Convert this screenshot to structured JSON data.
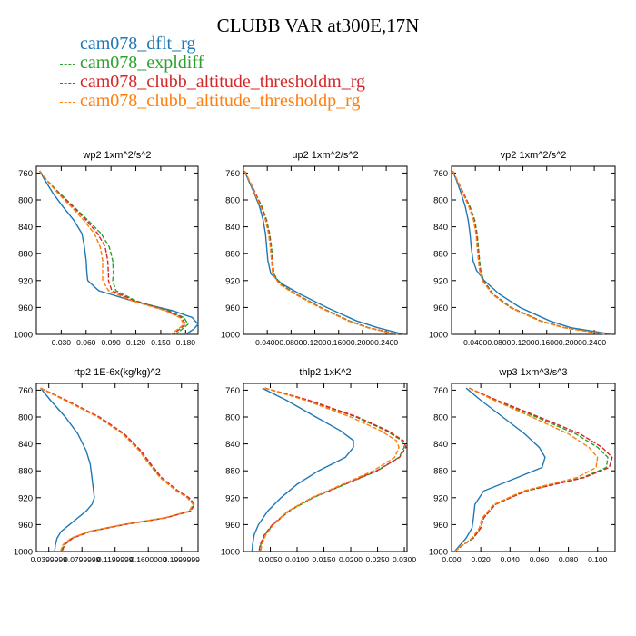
{
  "title": "CLUBB VAR at300E,17N",
  "legend": [
    {
      "label": "cam078_dflt_rg",
      "color": "#1f77b4",
      "dash": "solid"
    },
    {
      "label": "cam078_expldiff",
      "color": "#2ca02c",
      "dash": "dashed"
    },
    {
      "label": "cam078_clubb_altitude_thresholdm_rg",
      "color": "#d62728",
      "dash": "dashed"
    },
    {
      "label": "cam078_clubb_altitude_thresholdp_rg",
      "color": "#ff7f0e",
      "dash": "dashed"
    }
  ],
  "chart_data": [
    {
      "type": "line",
      "title": "wp2  1xm^2/s^2",
      "xlim": [
        0,
        0.195
      ],
      "ylim": [
        1000,
        750
      ],
      "xticks": [
        0.03,
        0.06,
        0.09,
        0.12,
        0.15,
        0.18
      ],
      "xticklabels": [
        "0.030",
        "0.060",
        "0.090",
        "0.120",
        "0.150",
        "0.180"
      ],
      "yticks": [
        760,
        800,
        840,
        880,
        920,
        960,
        1000
      ],
      "y": [
        757,
        770,
        790,
        810,
        830,
        850,
        870,
        890,
        910,
        920,
        935,
        950,
        965,
        975,
        985,
        992,
        1000
      ],
      "series": [
        {
          "name": "cam078_dflt_rg",
          "x": [
            0.004,
            0.01,
            0.02,
            0.032,
            0.045,
            0.055,
            0.058,
            0.06,
            0.061,
            0.062,
            0.075,
            0.115,
            0.165,
            0.188,
            0.195,
            0.19,
            0.18
          ]
        },
        {
          "name": "cam078_expldiff",
          "x": [
            0.004,
            0.012,
            0.028,
            0.045,
            0.062,
            0.078,
            0.088,
            0.092,
            0.093,
            0.092,
            0.096,
            0.12,
            0.16,
            0.178,
            0.183,
            0.176,
            0.168
          ]
        },
        {
          "name": "cam078_clubb_altitude_thresholdm_rg",
          "x": [
            0.004,
            0.012,
            0.027,
            0.044,
            0.06,
            0.074,
            0.083,
            0.086,
            0.087,
            0.087,
            0.091,
            0.118,
            0.158,
            0.175,
            0.18,
            0.173,
            0.165
          ]
        },
        {
          "name": "cam078_clubb_altitude_thresholdp_rg",
          "x": [
            0.004,
            0.012,
            0.026,
            0.042,
            0.057,
            0.07,
            0.077,
            0.08,
            0.08,
            0.08,
            0.087,
            0.115,
            0.156,
            0.173,
            0.178,
            0.171,
            0.162
          ]
        }
      ]
    },
    {
      "type": "line",
      "title": "up2  1xm^2/s^2",
      "xlim": [
        0.0,
        0.275
      ],
      "ylim": [
        1000,
        750
      ],
      "xticks": [
        0.04,
        0.08,
        0.12,
        0.16,
        0.2,
        0.24
      ],
      "xticklabels": [
        "0.0400",
        "0.0800",
        "0.1200",
        "0.1600",
        "0.2000",
        "0.2400"
      ],
      "yticks": [
        760,
        800,
        840,
        880,
        920,
        960,
        1000
      ],
      "y": [
        757,
        770,
        790,
        810,
        830,
        850,
        870,
        890,
        910,
        925,
        940,
        960,
        980,
        990,
        1000
      ],
      "series": [
        {
          "name": "cam078_dflt_rg",
          "x": [
            0.002,
            0.008,
            0.018,
            0.027,
            0.033,
            0.037,
            0.039,
            0.041,
            0.046,
            0.065,
            0.095,
            0.14,
            0.19,
            0.225,
            0.27
          ]
        },
        {
          "name": "cam078_expldiff",
          "x": [
            0.002,
            0.009,
            0.02,
            0.031,
            0.039,
            0.044,
            0.047,
            0.049,
            0.051,
            0.062,
            0.088,
            0.13,
            0.178,
            0.21,
            0.26
          ]
        },
        {
          "name": "cam078_clubb_altitude_thresholdm_rg",
          "x": [
            0.002,
            0.009,
            0.02,
            0.03,
            0.038,
            0.043,
            0.046,
            0.048,
            0.05,
            0.061,
            0.087,
            0.129,
            0.177,
            0.209,
            0.259
          ]
        },
        {
          "name": "cam078_clubb_altitude_thresholdp_rg",
          "x": [
            0.002,
            0.009,
            0.019,
            0.029,
            0.037,
            0.042,
            0.045,
            0.047,
            0.049,
            0.06,
            0.086,
            0.128,
            0.176,
            0.208,
            0.258
          ]
        }
      ]
    },
    {
      "type": "line",
      "title": "vp2  1xm^2/s^2",
      "xlim": [
        0.0,
        0.275
      ],
      "ylim": [
        1000,
        750
      ],
      "xticks": [
        0.04,
        0.08,
        0.12,
        0.16,
        0.2,
        0.24
      ],
      "xticklabels": [
        "0.0400",
        "0.0800",
        "0.1200",
        "0.1600",
        "0.2000",
        "0.2400"
      ],
      "yticks": [
        760,
        800,
        840,
        880,
        920,
        960,
        1000
      ],
      "y": [
        757,
        770,
        790,
        810,
        830,
        850,
        870,
        890,
        905,
        920,
        940,
        960,
        980,
        990,
        1000
      ],
      "series": [
        {
          "name": "cam078_dflt_rg",
          "x": [
            0.002,
            0.008,
            0.016,
            0.023,
            0.028,
            0.031,
            0.033,
            0.036,
            0.042,
            0.055,
            0.08,
            0.115,
            0.165,
            0.2,
            0.27
          ]
        },
        {
          "name": "cam078_expldiff",
          "x": [
            0.002,
            0.009,
            0.02,
            0.031,
            0.039,
            0.043,
            0.045,
            0.047,
            0.049,
            0.054,
            0.07,
            0.1,
            0.15,
            0.19,
            0.262
          ]
        },
        {
          "name": "cam078_clubb_altitude_thresholdm_rg",
          "x": [
            0.002,
            0.009,
            0.02,
            0.03,
            0.038,
            0.042,
            0.044,
            0.046,
            0.048,
            0.053,
            0.069,
            0.099,
            0.149,
            0.189,
            0.261
          ]
        },
        {
          "name": "cam078_clubb_altitude_thresholdp_rg",
          "x": [
            0.002,
            0.009,
            0.019,
            0.029,
            0.037,
            0.041,
            0.043,
            0.045,
            0.047,
            0.052,
            0.068,
            0.098,
            0.148,
            0.188,
            0.26
          ]
        }
      ]
    },
    {
      "type": "line",
      "title": "rtp2  1E-6x(kg/kg)^2",
      "xlim": [
        0.025,
        0.22
      ],
      "ylim": [
        1000,
        750
      ],
      "xticks": [
        0.04,
        0.08,
        0.12,
        0.16,
        0.2
      ],
      "xticklabels": [
        "0.0399999",
        "0.0799999",
        "0.1199999",
        "0.1600000",
        "0.1999999"
      ],
      "yticks": [
        760,
        800,
        840,
        880,
        920,
        960,
        1000
      ],
      "y": [
        757,
        775,
        800,
        825,
        850,
        870,
        890,
        910,
        920,
        930,
        940,
        950,
        960,
        970,
        980,
        990,
        1000
      ],
      "series": [
        {
          "name": "cam078_dflt_rg",
          "x": [
            0.03,
            0.042,
            0.06,
            0.075,
            0.085,
            0.09,
            0.092,
            0.094,
            0.095,
            0.092,
            0.085,
            0.075,
            0.065,
            0.055,
            0.05,
            0.048,
            0.047
          ]
        },
        {
          "name": "cam078_expldiff",
          "x": [
            0.03,
            0.06,
            0.1,
            0.13,
            0.15,
            0.162,
            0.175,
            0.195,
            0.208,
            0.215,
            0.21,
            0.18,
            0.13,
            0.09,
            0.068,
            0.058,
            0.055
          ]
        },
        {
          "name": "cam078_clubb_altitude_thresholdm_rg",
          "x": [
            0.03,
            0.061,
            0.101,
            0.131,
            0.151,
            0.163,
            0.176,
            0.196,
            0.209,
            0.216,
            0.211,
            0.181,
            0.131,
            0.091,
            0.069,
            0.059,
            0.056
          ]
        },
        {
          "name": "cam078_clubb_altitude_thresholdp_rg",
          "x": [
            0.03,
            0.059,
            0.099,
            0.129,
            0.149,
            0.161,
            0.174,
            0.194,
            0.207,
            0.214,
            0.209,
            0.179,
            0.129,
            0.089,
            0.067,
            0.057,
            0.054
          ]
        }
      ]
    },
    {
      "type": "line",
      "title": "thlp2  1xK^2",
      "xlim": [
        0.0,
        0.0305
      ],
      "ylim": [
        1000,
        750
      ],
      "xticks": [
        0.005,
        0.01,
        0.015,
        0.02,
        0.025,
        0.03
      ],
      "xticklabels": [
        "0.0050",
        "0.0100",
        "0.0150",
        "0.0200",
        "0.0250",
        "0.0300"
      ],
      "yticks": [
        760,
        800,
        840,
        880,
        920,
        960,
        1000
      ],
      "y": [
        757,
        775,
        800,
        820,
        835,
        845,
        860,
        880,
        900,
        920,
        940,
        960,
        975,
        990,
        1000
      ],
      "series": [
        {
          "name": "cam078_dflt_rg",
          "x": [
            0.0035,
            0.008,
            0.0135,
            0.018,
            0.0205,
            0.0205,
            0.019,
            0.014,
            0.01,
            0.007,
            0.0045,
            0.0028,
            0.002,
            0.0017,
            0.0016
          ]
        },
        {
          "name": "cam078_expldiff",
          "x": [
            0.004,
            0.012,
            0.021,
            0.0265,
            0.0295,
            0.03,
            0.029,
            0.025,
            0.019,
            0.013,
            0.0085,
            0.0055,
            0.004,
            0.0032,
            0.003
          ]
        },
        {
          "name": "cam078_clubb_altitude_thresholdm_rg",
          "x": [
            0.004,
            0.0122,
            0.0213,
            0.0268,
            0.0298,
            0.0303,
            0.0291,
            0.0248,
            0.0188,
            0.0128,
            0.0083,
            0.0054,
            0.0039,
            0.0031,
            0.0029
          ]
        },
        {
          "name": "cam078_clubb_altitude_thresholdp_rg",
          "x": [
            0.004,
            0.0115,
            0.02,
            0.0255,
            0.0285,
            0.029,
            0.0282,
            0.0242,
            0.0185,
            0.0127,
            0.0083,
            0.0056,
            0.0042,
            0.0034,
            0.0032
          ]
        }
      ]
    },
    {
      "type": "line",
      "title": "wp3  1xm^3/s^3",
      "xlim": [
        0.0,
        0.112
      ],
      "ylim": [
        1000,
        750
      ],
      "xticks": [
        0.0,
        0.02,
        0.04,
        0.06,
        0.08,
        0.1
      ],
      "xticklabels": [
        "0.000",
        "0.020",
        "0.040",
        "0.060",
        "0.080",
        "0.100"
      ],
      "yticks": [
        760,
        800,
        840,
        880,
        920,
        960,
        1000
      ],
      "y": [
        757,
        775,
        800,
        825,
        845,
        860,
        875,
        890,
        910,
        930,
        950,
        965,
        980,
        990,
        1000
      ],
      "series": [
        {
          "name": "cam078_dflt_rg",
          "x": [
            0.01,
            0.02,
            0.035,
            0.05,
            0.06,
            0.064,
            0.062,
            0.045,
            0.022,
            0.016,
            0.015,
            0.014,
            0.01,
            0.006,
            0.002
          ]
        },
        {
          "name": "cam078_expldiff",
          "x": [
            0.012,
            0.03,
            0.058,
            0.085,
            0.1,
            0.107,
            0.106,
            0.09,
            0.05,
            0.03,
            0.022,
            0.02,
            0.015,
            0.008,
            0.002
          ]
        },
        {
          "name": "cam078_clubb_altitude_thresholdm_rg",
          "x": [
            0.012,
            0.031,
            0.06,
            0.088,
            0.103,
            0.11,
            0.108,
            0.091,
            0.051,
            0.03,
            0.022,
            0.02,
            0.015,
            0.008,
            0.002
          ]
        },
        {
          "name": "cam078_clubb_altitude_thresholdp_rg",
          "x": [
            0.012,
            0.029,
            0.055,
            0.08,
            0.094,
            0.1,
            0.099,
            0.086,
            0.049,
            0.029,
            0.021,
            0.019,
            0.014,
            0.008,
            0.002
          ]
        }
      ]
    }
  ]
}
